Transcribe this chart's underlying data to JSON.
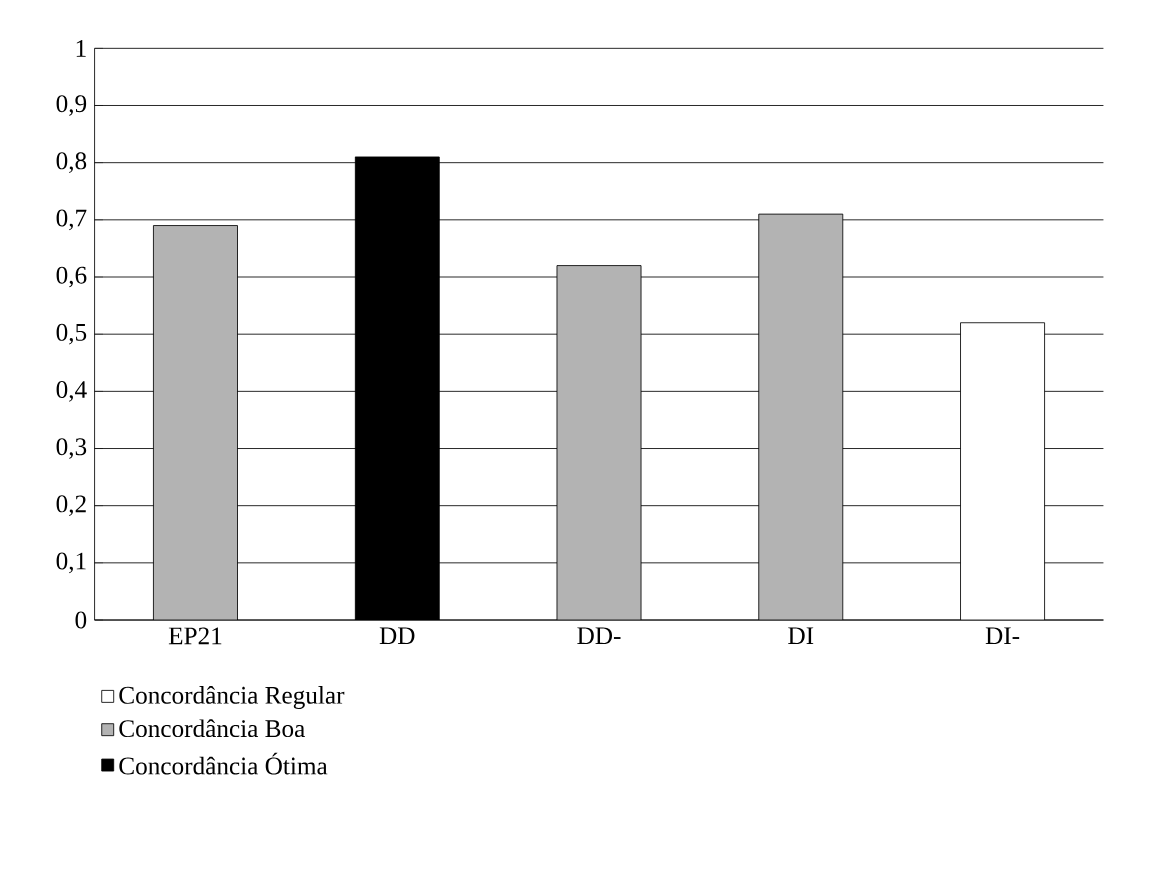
{
  "chart_data": {
    "type": "bar",
    "categories": [
      "EP21",
      "DD",
      "DD-",
      "DI",
      "DI-"
    ],
    "series": [
      {
        "name": "Concordância Regular",
        "color": "#ffffff",
        "values": [
          null,
          null,
          null,
          null,
          0.52
        ]
      },
      {
        "name": "Concordância Boa",
        "color": "#b3b3b3",
        "values": [
          0.69,
          null,
          0.62,
          0.71,
          null
        ]
      },
      {
        "name": "Concordância Ótima",
        "color": "#000000",
        "values": [
          null,
          0.81,
          null,
          null,
          null
        ]
      }
    ],
    "ylim": [
      0,
      1
    ],
    "yticks": [
      0,
      {
        "value": 0.1,
        "label": "0,1"
      },
      {
        "value": 0.2,
        "label": "0,2"
      },
      {
        "value": 0.3,
        "label": "0,3"
      },
      {
        "value": 0.4,
        "label": "0,4"
      },
      {
        "value": 0.5,
        "label": "0,5"
      },
      {
        "value": 0.6,
        "label": "0,6"
      },
      {
        "value": 0.7,
        "label": "0,7"
      },
      {
        "value": 0.8,
        "label": "0,8"
      },
      {
        "value": 0.9,
        "label": "0,9"
      },
      1
    ],
    "grid": "y",
    "legend": "bottom left"
  }
}
